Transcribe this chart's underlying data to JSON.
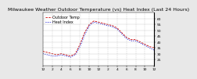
{
  "title": "Milwaukee Weather Outdoor Temperature (vs) Heat Index (Last 24 Hours)",
  "legend_temp": "Outdoor Temp",
  "legend_heat": "Heat Index",
  "background_color": "#e8e8e8",
  "plot_bg_color": "#ffffff",
  "temp_color": "#cc0000",
  "heat_color": "#0000cc",
  "ylim": [
    20,
    65
  ],
  "yticks": [
    25,
    30,
    35,
    40,
    45,
    50,
    55,
    60
  ],
  "hours": [
    0,
    1,
    2,
    3,
    4,
    5,
    6,
    7,
    8,
    9,
    10,
    11,
    12,
    13,
    14,
    15,
    16,
    17,
    18,
    19,
    20,
    21,
    22,
    23,
    24
  ],
  "temp": [
    32,
    31,
    30,
    29,
    30,
    29,
    28,
    30,
    38,
    48,
    55,
    58,
    57,
    56,
    55,
    54,
    52,
    48,
    44,
    42,
    42,
    40,
    38,
    36,
    35
  ],
  "heat": [
    30,
    29,
    28,
    28,
    29,
    28,
    27,
    29,
    36,
    46,
    54,
    57,
    56,
    55,
    54,
    53,
    51,
    47,
    43,
    41,
    41,
    39,
    37,
    35,
    33
  ],
  "grid_color": "#aaaaaa",
  "title_fontsize": 4.5,
  "tick_fontsize": 3.2,
  "legend_fontsize": 3.5,
  "temp_linewidth": 0.6,
  "heat_linewidth": 0.7
}
